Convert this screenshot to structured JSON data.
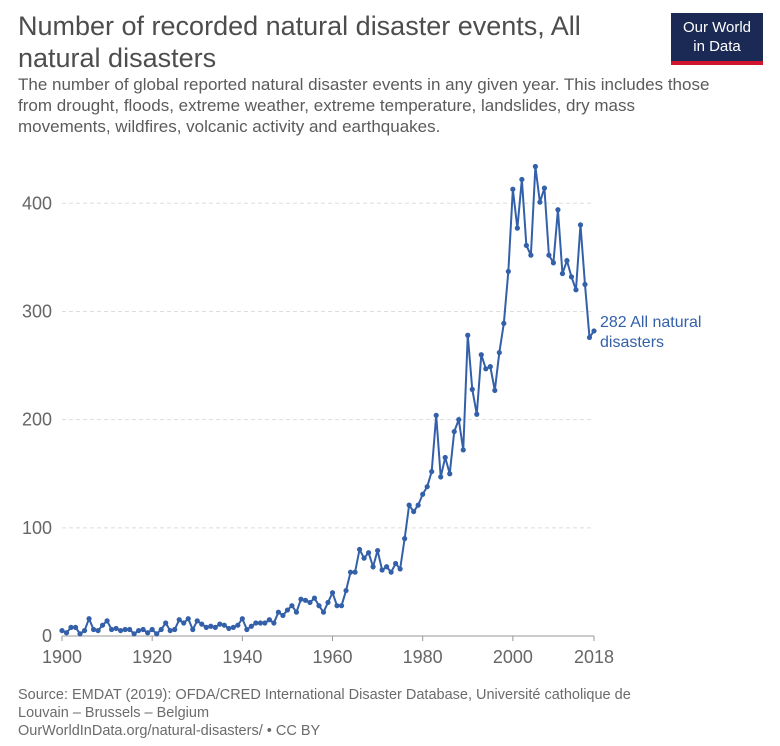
{
  "header": {
    "title": "Number of recorded natural disaster events, All natural disasters",
    "subtitle": "The number of global reported natural disaster events in any given year. This includes those from drought, floods, extreme weather, extreme temperature, landslides, dry mass movements, wildfires, volcanic activity and earthquakes."
  },
  "logo": {
    "line1": "Our World",
    "line2": "in Data"
  },
  "footer": {
    "source_line1": "Source: EMDAT (2019): OFDA/CRED International Disaster Database, Université catholique de",
    "source_line2": "Louvain – Brussels – Belgium",
    "url_line": "OurWorldInData.org/natural-disasters/ • CC BY"
  },
  "colors": {
    "series": "#3360a9",
    "grid": "#dddddd",
    "axis": "#999999"
  },
  "chart_data": {
    "type": "line",
    "title": "Number of recorded natural disaster events, All natural disasters",
    "xlabel": "",
    "ylabel": "",
    "xlim": [
      1900,
      2018
    ],
    "ylim": [
      0,
      440
    ],
    "x_ticks": [
      1900,
      1920,
      1940,
      1960,
      1980,
      2000,
      2018
    ],
    "y_ticks": [
      0,
      100,
      200,
      300,
      400
    ],
    "end_label": "282 All natural disasters",
    "series": [
      {
        "name": "All natural disasters",
        "x": [
          1900,
          1901,
          1902,
          1903,
          1904,
          1905,
          1906,
          1907,
          1908,
          1909,
          1910,
          1911,
          1912,
          1913,
          1914,
          1915,
          1916,
          1917,
          1918,
          1919,
          1920,
          1921,
          1922,
          1923,
          1924,
          1925,
          1926,
          1927,
          1928,
          1929,
          1930,
          1931,
          1932,
          1933,
          1934,
          1935,
          1936,
          1937,
          1938,
          1939,
          1940,
          1941,
          1942,
          1943,
          1944,
          1945,
          1946,
          1947,
          1948,
          1949,
          1950,
          1951,
          1952,
          1953,
          1954,
          1955,
          1956,
          1957,
          1958,
          1959,
          1960,
          1961,
          1962,
          1963,
          1964,
          1965,
          1966,
          1967,
          1968,
          1969,
          1970,
          1971,
          1972,
          1973,
          1974,
          1975,
          1976,
          1977,
          1978,
          1979,
          1980,
          1981,
          1982,
          1983,
          1984,
          1985,
          1986,
          1987,
          1988,
          1989,
          1990,
          1991,
          1992,
          1993,
          1994,
          1995,
          1996,
          1997,
          1998,
          1999,
          2000,
          2001,
          2002,
          2003,
          2004,
          2005,
          2006,
          2007,
          2008,
          2009,
          2010,
          2011,
          2012,
          2013,
          2014,
          2015,
          2016,
          2017,
          2018
        ],
        "values": [
          5,
          3,
          8,
          8,
          2,
          5,
          16,
          6,
          5,
          10,
          14,
          6,
          7,
          5,
          6,
          6,
          2,
          5,
          6,
          3,
          6,
          2,
          6,
          12,
          5,
          6,
          15,
          12,
          16,
          6,
          14,
          11,
          8,
          9,
          8,
          11,
          10,
          7,
          8,
          10,
          16,
          6,
          9,
          12,
          12,
          12,
          15,
          12,
          22,
          19,
          24,
          28,
          22,
          34,
          33,
          31,
          35,
          28,
          22,
          31,
          40,
          28,
          28,
          42,
          59,
          59,
          80,
          72,
          77,
          64,
          79,
          61,
          64,
          59,
          67,
          62,
          90,
          121,
          115,
          121,
          131,
          138,
          152,
          204,
          147,
          165,
          150,
          189,
          200,
          172,
          278,
          228,
          205,
          260,
          247,
          249,
          227,
          262,
          289,
          337,
          413,
          377,
          422,
          361,
          352,
          434,
          401,
          414,
          352,
          345,
          394,
          335,
          347,
          332,
          320,
          380,
          325,
          276,
          282
        ]
      }
    ]
  }
}
